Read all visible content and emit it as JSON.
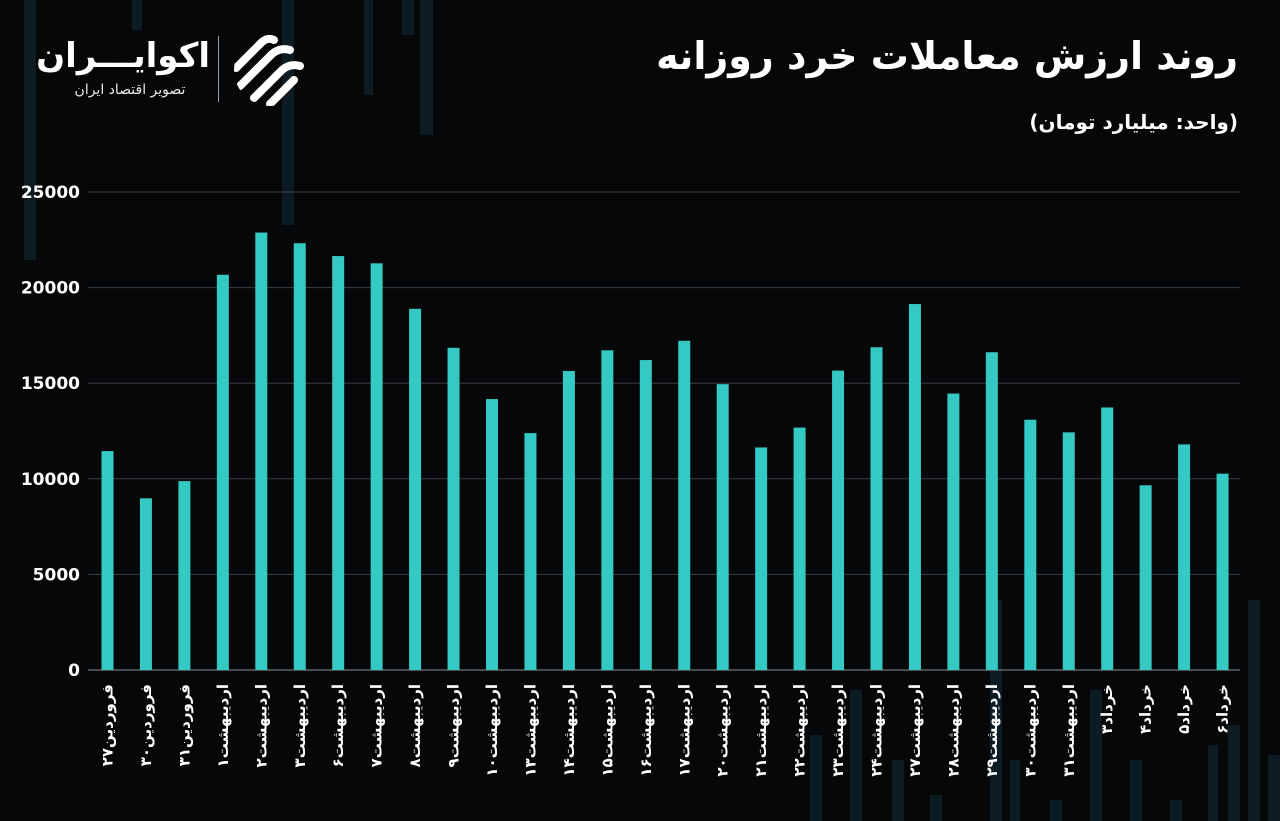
{
  "header": {
    "title": "روند ارزش معاملات خرد روزانه",
    "unit": "(واحد: میلیارد تومان)"
  },
  "logo": {
    "name": "اکوایـــران",
    "tagline": "تصویر اقتصاد ایران"
  },
  "colors": {
    "background": "#050709",
    "bar": "#34c9c3",
    "grid": "#3a3f44",
    "text": "#ffffff"
  },
  "chart_data": {
    "type": "bar",
    "title": "روند ارزش معاملات خرد روزانه",
    "ylabel": "(واحد: میلیارد تومان)",
    "xlabel": "",
    "ylim": [
      0,
      25000
    ],
    "yticks": [
      0,
      5000,
      10000,
      15000,
      20000,
      25000
    ],
    "ytick_labels": [
      "0",
      "5000",
      "10000",
      "15000",
      "20000",
      "25000"
    ],
    "grid": true,
    "categories": [
      "فروردین۲۷",
      "فروردین۳۰",
      "فروردین۳۱",
      "اردیبهشت۱",
      "اردیبهشت۲",
      "اردیبهشت۳",
      "اردیبهشت۶",
      "اردیبهشت۷",
      "اردیبهشت۸",
      "اردیبهشت۹",
      "اردیبهشت۱۰",
      "اردیبهشت۱۳",
      "اردیبهشت۱۴",
      "اردیبهشت۱۵",
      "اردیبهشت۱۶",
      "اردیبهشت۱۷",
      "اردیبهشت۲۰",
      "اردیبهشت۲۱",
      "اردیبهشت۲۲",
      "اردیبهشت۲۳",
      "اردیبهشت۲۴",
      "اردیبهشت۲۷",
      "اردیبهشت۲۸",
      "اردیبهشت۲۹",
      "اردیبهشت۳۰",
      "اردیبهشت۳۱",
      "خرداد۳",
      "خرداد۴",
      "خرداد۵",
      "خرداد۶"
    ],
    "values": [
      11450,
      8980,
      9880,
      20670,
      22880,
      22320,
      21650,
      21270,
      18890,
      16850,
      14170,
      12390,
      15640,
      16720,
      16210,
      17220,
      14950,
      11640,
      12680,
      15660,
      16880,
      19140,
      14460,
      16620,
      13090,
      12430,
      13730,
      9660,
      11800,
      10270
    ]
  }
}
